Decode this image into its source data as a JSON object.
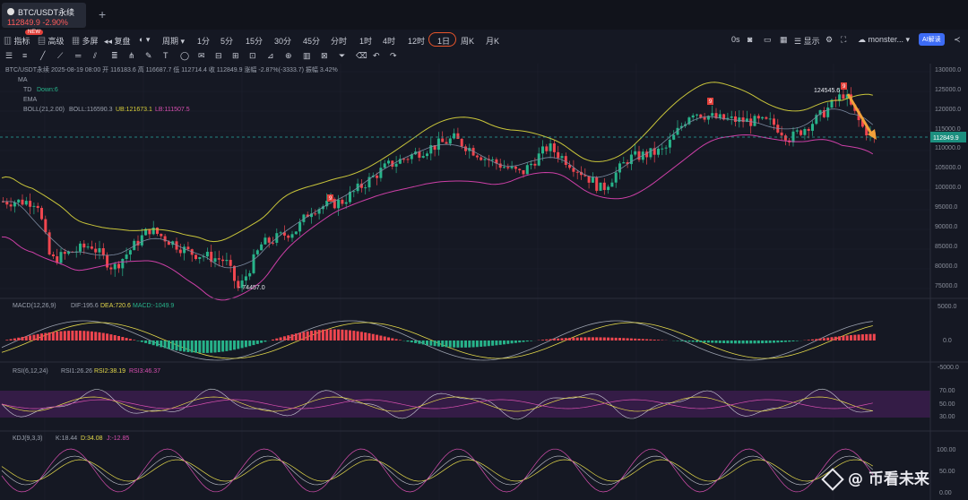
{
  "tab": {
    "symbol": "BTC/USDT永续",
    "price": "112849.9",
    "change": "-2.90%"
  },
  "badge_new": "NEW",
  "toolbar": {
    "indicators": "指标",
    "advanced": "高级",
    "multi": "多屏",
    "replay": "复盘",
    "period": "周期",
    "intervals": [
      "1分",
      "5分",
      "15分",
      "30分",
      "45分",
      "分时",
      "1时",
      "4时",
      "12时",
      "1日",
      "周K",
      "月K"
    ],
    "selected": "1日",
    "timer": "0s",
    "show": "显示",
    "user": "monster...",
    "ai": "AI解读"
  },
  "legend": {
    "header": "BTC/USDT永续 2025-08-19 08:00 开 116183.6 高 116687.7 低 112714.4 收 112849.9 涨幅 -2.87%(-3333.7) 振幅 3.42%",
    "ma": "MA",
    "td_label": "TD",
    "td_value": "Down:6",
    "ema": "EMA",
    "boll": "BOLL(21,2.00)",
    "boll_v": "BOLL:116590.3",
    "ub": "UB:121673.1",
    "lb": "LB:111507.5"
  },
  "price_axis": [
    "130000.0",
    "125000.0",
    "120000.0",
    "115000.0",
    "110000.0",
    "105000.0",
    "100000.0",
    "95000.0",
    "90000.0",
    "85000.0",
    "80000.0",
    "75000.0"
  ],
  "last_price": "112849.9",
  "annotations": {
    "high": "124545.6",
    "low": "74457.0",
    "td_mark": "9"
  },
  "macd": {
    "label": "MACD(12,26,9)",
    "dif": "DIF:195.6",
    "dea": "DEA:720.6",
    "macd": "MACD:-1049.9",
    "axis": [
      "5000.0",
      "0.0",
      "-5000.0"
    ]
  },
  "rsi": {
    "label": "RSI(6,12,24)",
    "r1": "RSI1:26.26",
    "r2": "RSI2:38.19",
    "r3": "RSI3:46.37",
    "axis": [
      "70.00",
      "50.00",
      "30.00"
    ]
  },
  "kdj": {
    "label": "KDJ(9,3,3)",
    "k": "K:18.44",
    "d": "D:34.08",
    "j": "J:-12.85",
    "axis": [
      "100.00",
      "50.00",
      "0.00"
    ]
  },
  "watermark": "@ 币看未来",
  "colors": {
    "up": "#27b38a",
    "down": "#f0464f",
    "bg": "#151823",
    "boll_band": "#c9c53a",
    "lb": "#cc3fa6",
    "mid": "#7c8aa0",
    "rsi_band": "#3b1f4a"
  },
  "chart_data": {
    "type": "candlestick",
    "series": [
      {
        "name": "price",
        "values": []
      }
    ]
  }
}
